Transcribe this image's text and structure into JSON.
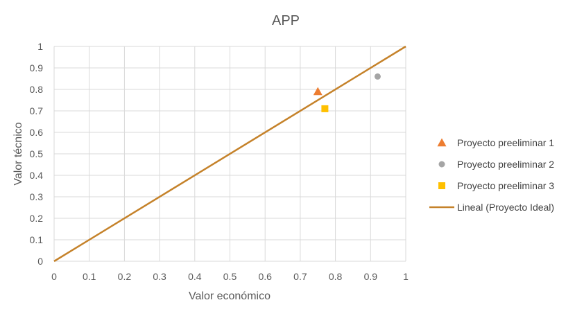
{
  "chart_data": {
    "type": "scatter",
    "title": "APP",
    "xlabel": "Valor económico",
    "ylabel": "Valor técnico",
    "xlim": [
      0,
      1
    ],
    "ylim": [
      0,
      1
    ],
    "xticks": [
      "0",
      "0.1",
      "0.2",
      "0.3",
      "0.4",
      "0.5",
      "0.6",
      "0.7",
      "0.8",
      "0.9",
      "1"
    ],
    "yticks": [
      "0",
      "0.1",
      "0.2",
      "0.3",
      "0.4",
      "0.5",
      "0.6",
      "0.7",
      "0.8",
      "0.9",
      "1"
    ],
    "grid": true,
    "legend_position": "right",
    "series": [
      {
        "name": "Proyecto preeliminar 1",
        "marker": "triangle",
        "color": "#ED7D31",
        "points": [
          {
            "x": 0.75,
            "y": 0.79
          }
        ]
      },
      {
        "name": "Proyecto preeliminar 2",
        "marker": "circle",
        "color": "#A5A5A5",
        "points": [
          {
            "x": 0.92,
            "y": 0.86
          }
        ]
      },
      {
        "name": "Proyecto preeliminar 3",
        "marker": "square",
        "color": "#FFC000",
        "points": [
          {
            "x": 0.77,
            "y": 0.71
          }
        ]
      },
      {
        "name": "Lineal (Proyecto Ideal)",
        "marker": "line",
        "color": "#C5822A",
        "points": [
          {
            "x": 0,
            "y": 0
          },
          {
            "x": 1,
            "y": 1
          }
        ]
      }
    ]
  }
}
